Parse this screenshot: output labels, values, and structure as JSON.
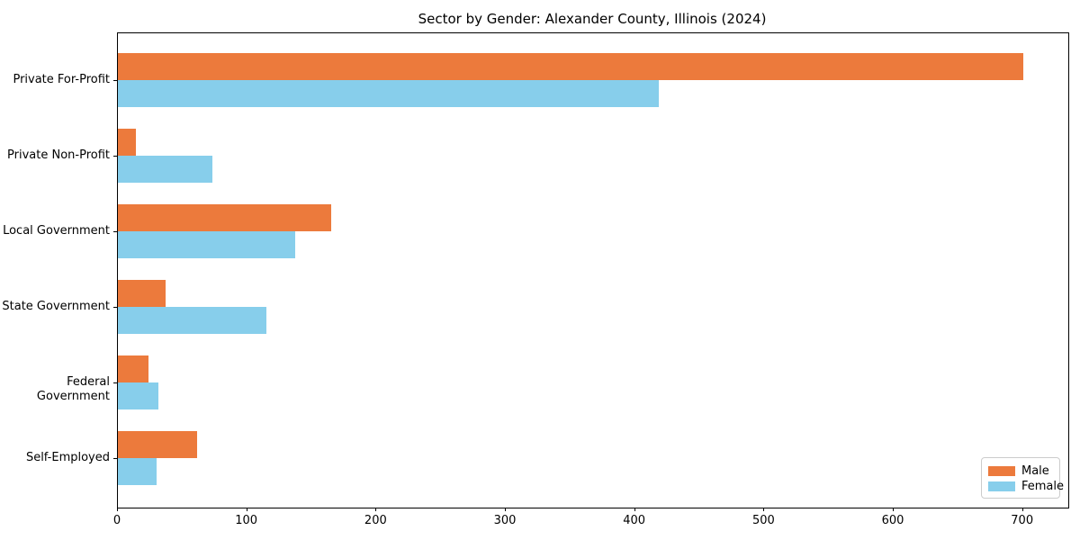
{
  "chart_data": {
    "type": "bar",
    "orientation": "horizontal",
    "title": "Sector by Gender: Alexander County, Illinois (2024)",
    "categories": [
      "Private For-Profit",
      "Private Non-Profit",
      "Local Government",
      "State Government",
      "Federal Government",
      "Self-Employed"
    ],
    "series": [
      {
        "name": "Male",
        "color": "#ec7a3c",
        "values": [
          700,
          14,
          165,
          37,
          24,
          61
        ]
      },
      {
        "name": "Female",
        "color": "#87ceeb",
        "values": [
          418,
          73,
          137,
          115,
          31,
          30
        ]
      }
    ],
    "x_ticks": [
      0,
      100,
      200,
      300,
      400,
      500,
      600,
      700
    ],
    "xlim": [
      0,
      735
    ],
    "xlabel": "",
    "ylabel": "",
    "grid": false,
    "legend_position": "lower right",
    "colors": {
      "axis": "#000000",
      "background": "#ffffff",
      "legend_border": "#cccccc"
    }
  }
}
